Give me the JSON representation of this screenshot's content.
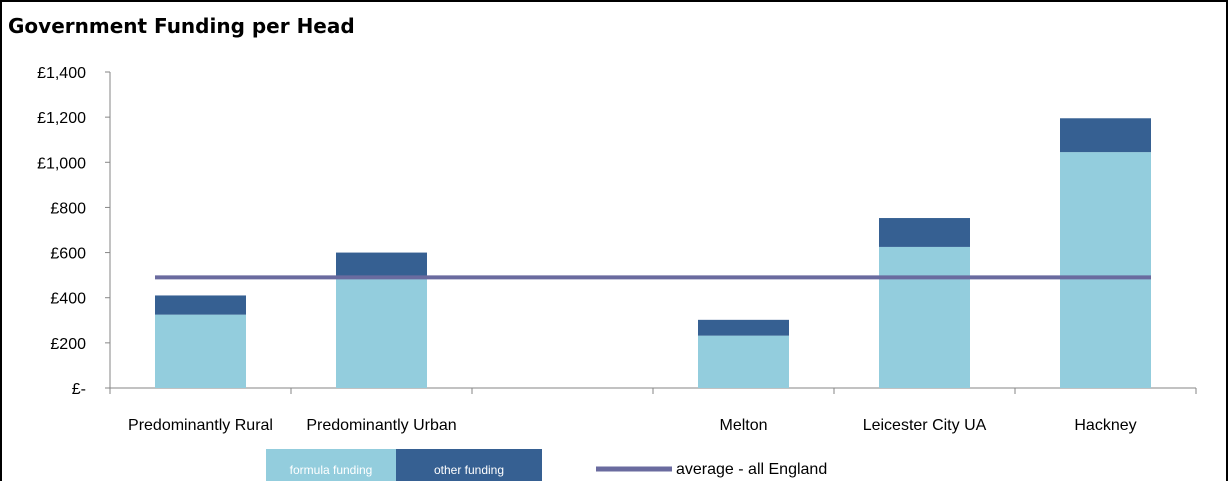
{
  "chart_data": {
    "type": "bar",
    "stacked": true,
    "title": "Government Funding per Head",
    "categories": [
      "Predominantly Rural",
      "Predominantly Urban",
      "",
      "Melton",
      "Leicester City UA",
      "Hackney"
    ],
    "series": [
      {
        "name": "formula funding",
        "values": [
          325,
          495,
          null,
          232,
          625,
          1045
        ],
        "color": "#93CDDD"
      },
      {
        "name": "other funding",
        "values": [
          85,
          105,
          null,
          70,
          128,
          150
        ],
        "color": "#366092"
      }
    ],
    "average": {
      "name": "average - all England",
      "value": 490,
      "color": "#6A6B9F"
    },
    "y_ticks": [
      "£-",
      "£200",
      "£400",
      "£600",
      "£800",
      "£1,000",
      "£1,200",
      "£1,400"
    ],
    "ylim": [
      0,
      1400
    ],
    "ystep": 200,
    "xlabel": "",
    "ylabel": "",
    "grid": false,
    "legend": "bottom"
  }
}
